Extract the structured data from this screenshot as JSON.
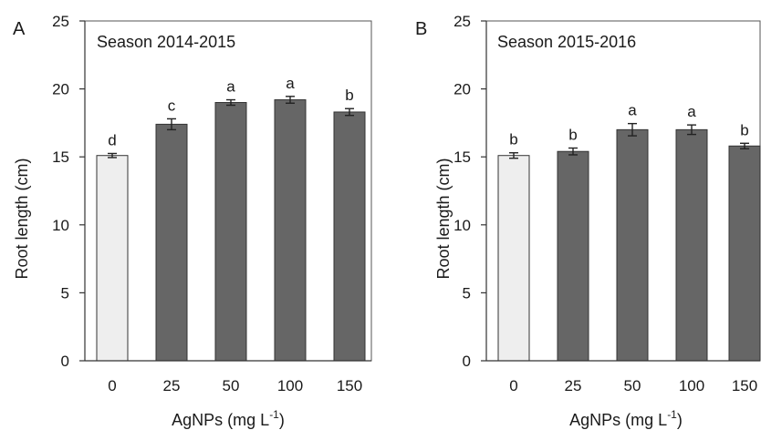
{
  "chart_data": [
    {
      "type": "bar",
      "panel": "A",
      "annotation": "Season 2014-2015",
      "categories": [
        "0",
        "25",
        "50",
        "100",
        "150"
      ],
      "values": [
        15.1,
        17.4,
        19.0,
        19.2,
        18.3
      ],
      "errors": [
        0.15,
        0.4,
        0.2,
        0.25,
        0.25
      ],
      "significance": [
        "d",
        "c",
        "a",
        "a",
        "b"
      ],
      "bar_colors": [
        "#eeeeee",
        "#666666",
        "#666666",
        "#666666",
        "#666666"
      ],
      "ylabel": "Root length (cm)",
      "xlabel": "AgNPs (mg L",
      "xlabel_sup": "-1",
      "xlabel_end": ")",
      "ylim": [
        0,
        25
      ],
      "yticks": [
        "0",
        "5",
        "10",
        "15",
        "20",
        "25"
      ]
    },
    {
      "type": "bar",
      "panel": "B",
      "annotation": "Season 2015-2016",
      "categories": [
        "0",
        "25",
        "50",
        "100",
        "150"
      ],
      "values": [
        15.1,
        15.4,
        17.0,
        17.0,
        15.8
      ],
      "errors": [
        0.2,
        0.25,
        0.45,
        0.35,
        0.2
      ],
      "significance": [
        "b",
        "b",
        "a",
        "a",
        "b"
      ],
      "bar_colors": [
        "#eeeeee",
        "#666666",
        "#666666",
        "#666666",
        "#666666"
      ],
      "ylabel": "Root length (cm)",
      "xlabel": "AgNPs (mg L",
      "xlabel_sup": "-1",
      "xlabel_end": ")",
      "ylim": [
        0,
        25
      ],
      "yticks": [
        "0",
        "5",
        "10",
        "15",
        "20",
        "25"
      ]
    }
  ]
}
